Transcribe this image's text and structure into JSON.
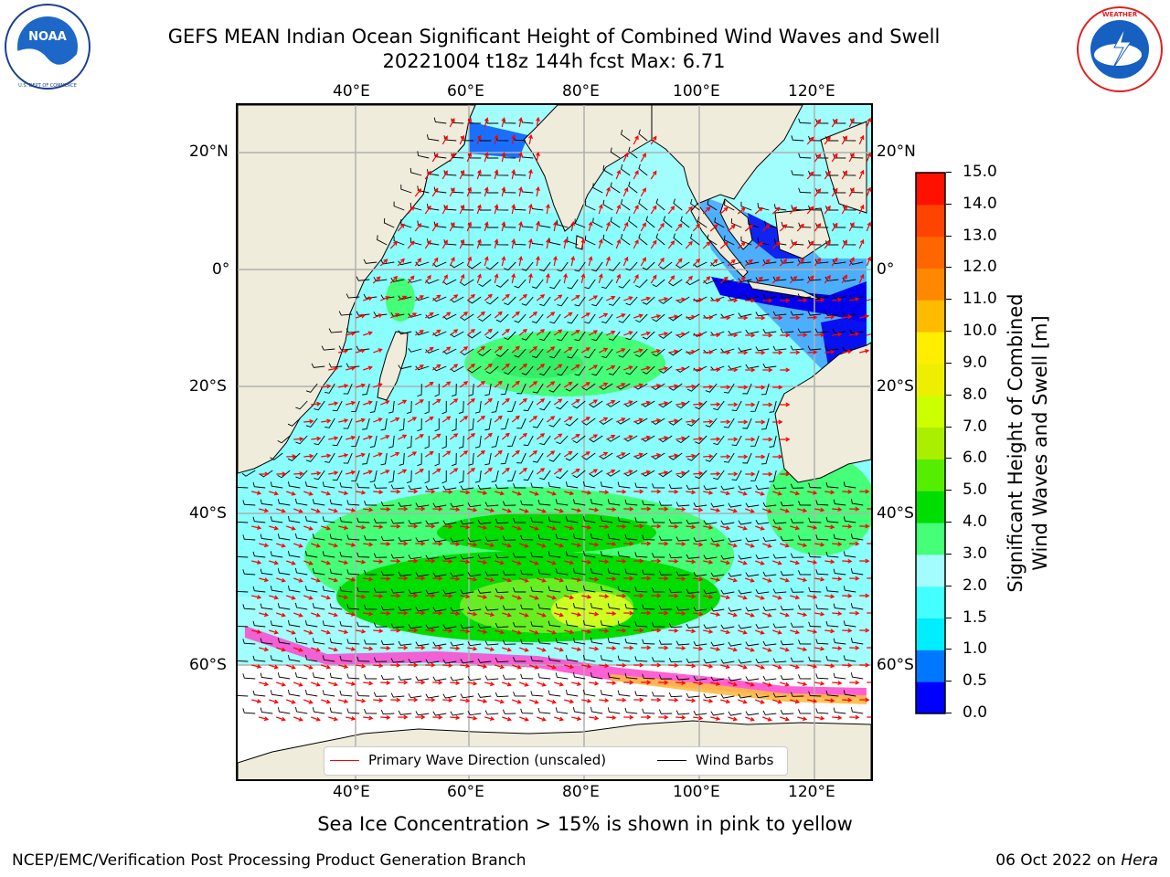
{
  "header": {
    "title_line1": "GEFS MEAN Indian Ocean Significant Height of Combined Wind Waves and Swell",
    "title_line2": "20221004 t18z 144h fcst   Max: 6.71"
  },
  "logos": {
    "left": {
      "name": "NOAA",
      "ring_text": "NATIONAL OCEANIC AND ATMOSPHERIC ADMINISTRATION · U.S. DEPARTMENT OF COMMERCE"
    },
    "right": {
      "name": "NATIONAL WEATHER SERVICE"
    }
  },
  "map": {
    "lon_ticks": [
      "40°E",
      "60°E",
      "80°E",
      "100°E",
      "120°E"
    ],
    "lat_ticks": [
      "20°N",
      "0°",
      "20°S",
      "40°S",
      "60°S"
    ],
    "colors": {
      "land": "#efecdc",
      "ocean_base": "#a2fdfd",
      "grid": "#b0b0b0",
      "wave_arrow": "#ff0000",
      "wind_barb": "#000000"
    }
  },
  "legend": {
    "primary_wave": "Primary Wave Direction (unscaled)",
    "wind_barbs": "Wind Barbs"
  },
  "colorbar": {
    "title_line1": "Significant Height of Combined",
    "title_line2": "Wind Waves and Swell [m]",
    "ticks": [
      "0.0",
      "0.5",
      "1.0",
      "1.5",
      "2.0",
      "3.0",
      "4.0",
      "5.0",
      "6.0",
      "7.0",
      "8.0",
      "9.0",
      "10.0",
      "11.0",
      "12.0",
      "13.0",
      "14.0",
      "15.0"
    ],
    "colors": [
      "#0000ff",
      "#0077ff",
      "#00eeff",
      "#44ffff",
      "#a3fdff",
      "#44ff77",
      "#00dd00",
      "#55ee00",
      "#aaee00",
      "#ccff00",
      "#eeee00",
      "#ffee00",
      "#ffbb00",
      "#ff8800",
      "#ff6600",
      "#ff4400",
      "#ff1100"
    ]
  },
  "footer": {
    "note": "Sea Ice Concentration > 15% is shown in pink to yellow",
    "left": "NCEP/EMC/Verification Post Processing Product Generation Branch",
    "right_prefix": "06 Oct 2022 on ",
    "right_machine": "Hera"
  }
}
